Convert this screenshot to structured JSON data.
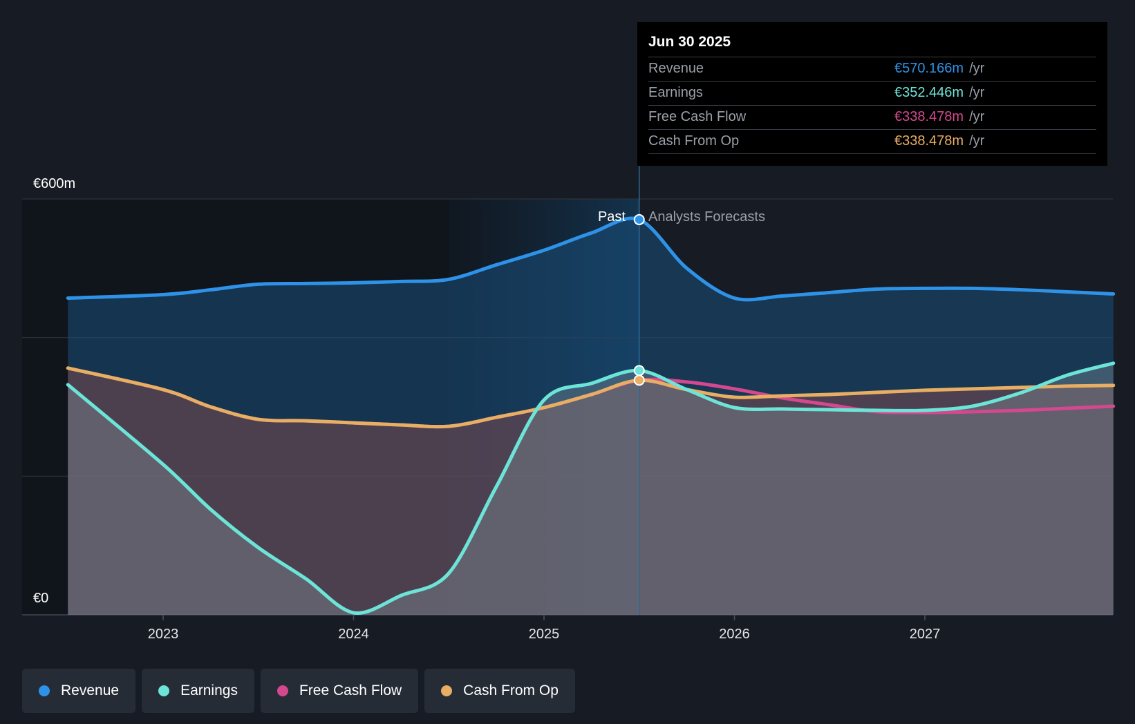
{
  "chart_data": {
    "type": "area",
    "y_axis": {
      "min_label": "€0",
      "max_label": "€600m",
      "ylim": [
        0,
        600
      ],
      "gridlines": [
        0,
        200,
        400,
        600
      ]
    },
    "x_ticks": [
      "2023",
      "2024",
      "2025",
      "2026",
      "2027"
    ],
    "x_range": [
      2022.5,
      2027.99
    ],
    "past_label": "Past",
    "forecast_label": "Analysts Forecasts",
    "divider_x": 2025.5,
    "series": [
      {
        "name": "Revenue",
        "color": "#2e93e8",
        "points": [
          [
            2022.5,
            457
          ],
          [
            2023.0,
            462
          ],
          [
            2023.25,
            469
          ],
          [
            2023.5,
            477
          ],
          [
            2023.75,
            478
          ],
          [
            2024.0,
            479
          ],
          [
            2024.25,
            481
          ],
          [
            2024.5,
            484
          ],
          [
            2024.75,
            505
          ],
          [
            2025.0,
            526
          ],
          [
            2025.25,
            551
          ],
          [
            2025.5,
            570.166
          ],
          [
            2025.75,
            500
          ],
          [
            2026.0,
            457
          ],
          [
            2026.25,
            460
          ],
          [
            2026.5,
            465
          ],
          [
            2026.75,
            470
          ],
          [
            2027.0,
            471
          ],
          [
            2027.25,
            471
          ],
          [
            2027.5,
            469
          ],
          [
            2027.75,
            466
          ],
          [
            2027.99,
            463
          ]
        ]
      },
      {
        "name": "Earnings",
        "color": "#6de4d8",
        "points": [
          [
            2022.5,
            332
          ],
          [
            2023.0,
            217
          ],
          [
            2023.25,
            152
          ],
          [
            2023.5,
            97
          ],
          [
            2023.75,
            52
          ],
          [
            2024.0,
            3
          ],
          [
            2024.25,
            28
          ],
          [
            2024.5,
            60
          ],
          [
            2024.75,
            185
          ],
          [
            2025.0,
            310
          ],
          [
            2025.25,
            334
          ],
          [
            2025.5,
            352.446
          ],
          [
            2025.75,
            325
          ],
          [
            2026.0,
            299
          ],
          [
            2026.25,
            297
          ],
          [
            2026.5,
            296
          ],
          [
            2026.75,
            295
          ],
          [
            2027.0,
            295
          ],
          [
            2027.25,
            301
          ],
          [
            2027.5,
            320
          ],
          [
            2027.75,
            346
          ],
          [
            2027.99,
            363
          ]
        ]
      },
      {
        "name": "Free Cash Flow",
        "color": "#d4488f",
        "points": [
          [
            2022.5,
            356
          ],
          [
            2023.0,
            325
          ],
          [
            2023.25,
            300
          ],
          [
            2023.5,
            282
          ],
          [
            2023.75,
            280
          ],
          [
            2024.0,
            277
          ],
          [
            2024.25,
            274
          ],
          [
            2024.5,
            272
          ],
          [
            2024.75,
            285
          ],
          [
            2025.0,
            299
          ],
          [
            2025.25,
            318
          ],
          [
            2025.5,
            338.478
          ],
          [
            2025.75,
            336
          ],
          [
            2026.0,
            326
          ],
          [
            2026.25,
            313
          ],
          [
            2026.5,
            303
          ],
          [
            2026.75,
            293
          ],
          [
            2027.0,
            292
          ],
          [
            2027.25,
            293
          ],
          [
            2027.5,
            295
          ],
          [
            2027.75,
            298
          ],
          [
            2027.99,
            301
          ]
        ]
      },
      {
        "name": "Cash From Op",
        "color": "#e8ae64",
        "points": [
          [
            2022.5,
            356
          ],
          [
            2023.0,
            325
          ],
          [
            2023.25,
            300
          ],
          [
            2023.5,
            282
          ],
          [
            2023.75,
            280
          ],
          [
            2024.0,
            277
          ],
          [
            2024.25,
            274
          ],
          [
            2024.5,
            272
          ],
          [
            2024.75,
            285
          ],
          [
            2025.0,
            299
          ],
          [
            2025.25,
            318
          ],
          [
            2025.5,
            338.478
          ],
          [
            2025.75,
            325
          ],
          [
            2026.0,
            314
          ],
          [
            2026.25,
            316
          ],
          [
            2026.5,
            318
          ],
          [
            2026.75,
            321
          ],
          [
            2027.0,
            324
          ],
          [
            2027.25,
            326
          ],
          [
            2027.5,
            328
          ],
          [
            2027.75,
            330
          ],
          [
            2027.99,
            331
          ]
        ]
      }
    ]
  },
  "tooltip": {
    "date": "Jun 30 2025",
    "rows": [
      {
        "name": "Revenue",
        "value": "€570.166m",
        "unit": "/yr",
        "color": "#2e93e8"
      },
      {
        "name": "Earnings",
        "value": "€352.446m",
        "unit": "/yr",
        "color": "#6de4d8"
      },
      {
        "name": "Free Cash Flow",
        "value": "€338.478m",
        "unit": "/yr",
        "color": "#d4488f"
      },
      {
        "name": "Cash From Op",
        "value": "€338.478m",
        "unit": "/yr",
        "color": "#e8ae64"
      }
    ]
  },
  "legend": [
    {
      "label": "Revenue",
      "color": "#2e93e8"
    },
    {
      "label": "Earnings",
      "color": "#6de4d8"
    },
    {
      "label": "Free Cash Flow",
      "color": "#d4488f"
    },
    {
      "label": "Cash From Op",
      "color": "#e8ae64"
    }
  ]
}
